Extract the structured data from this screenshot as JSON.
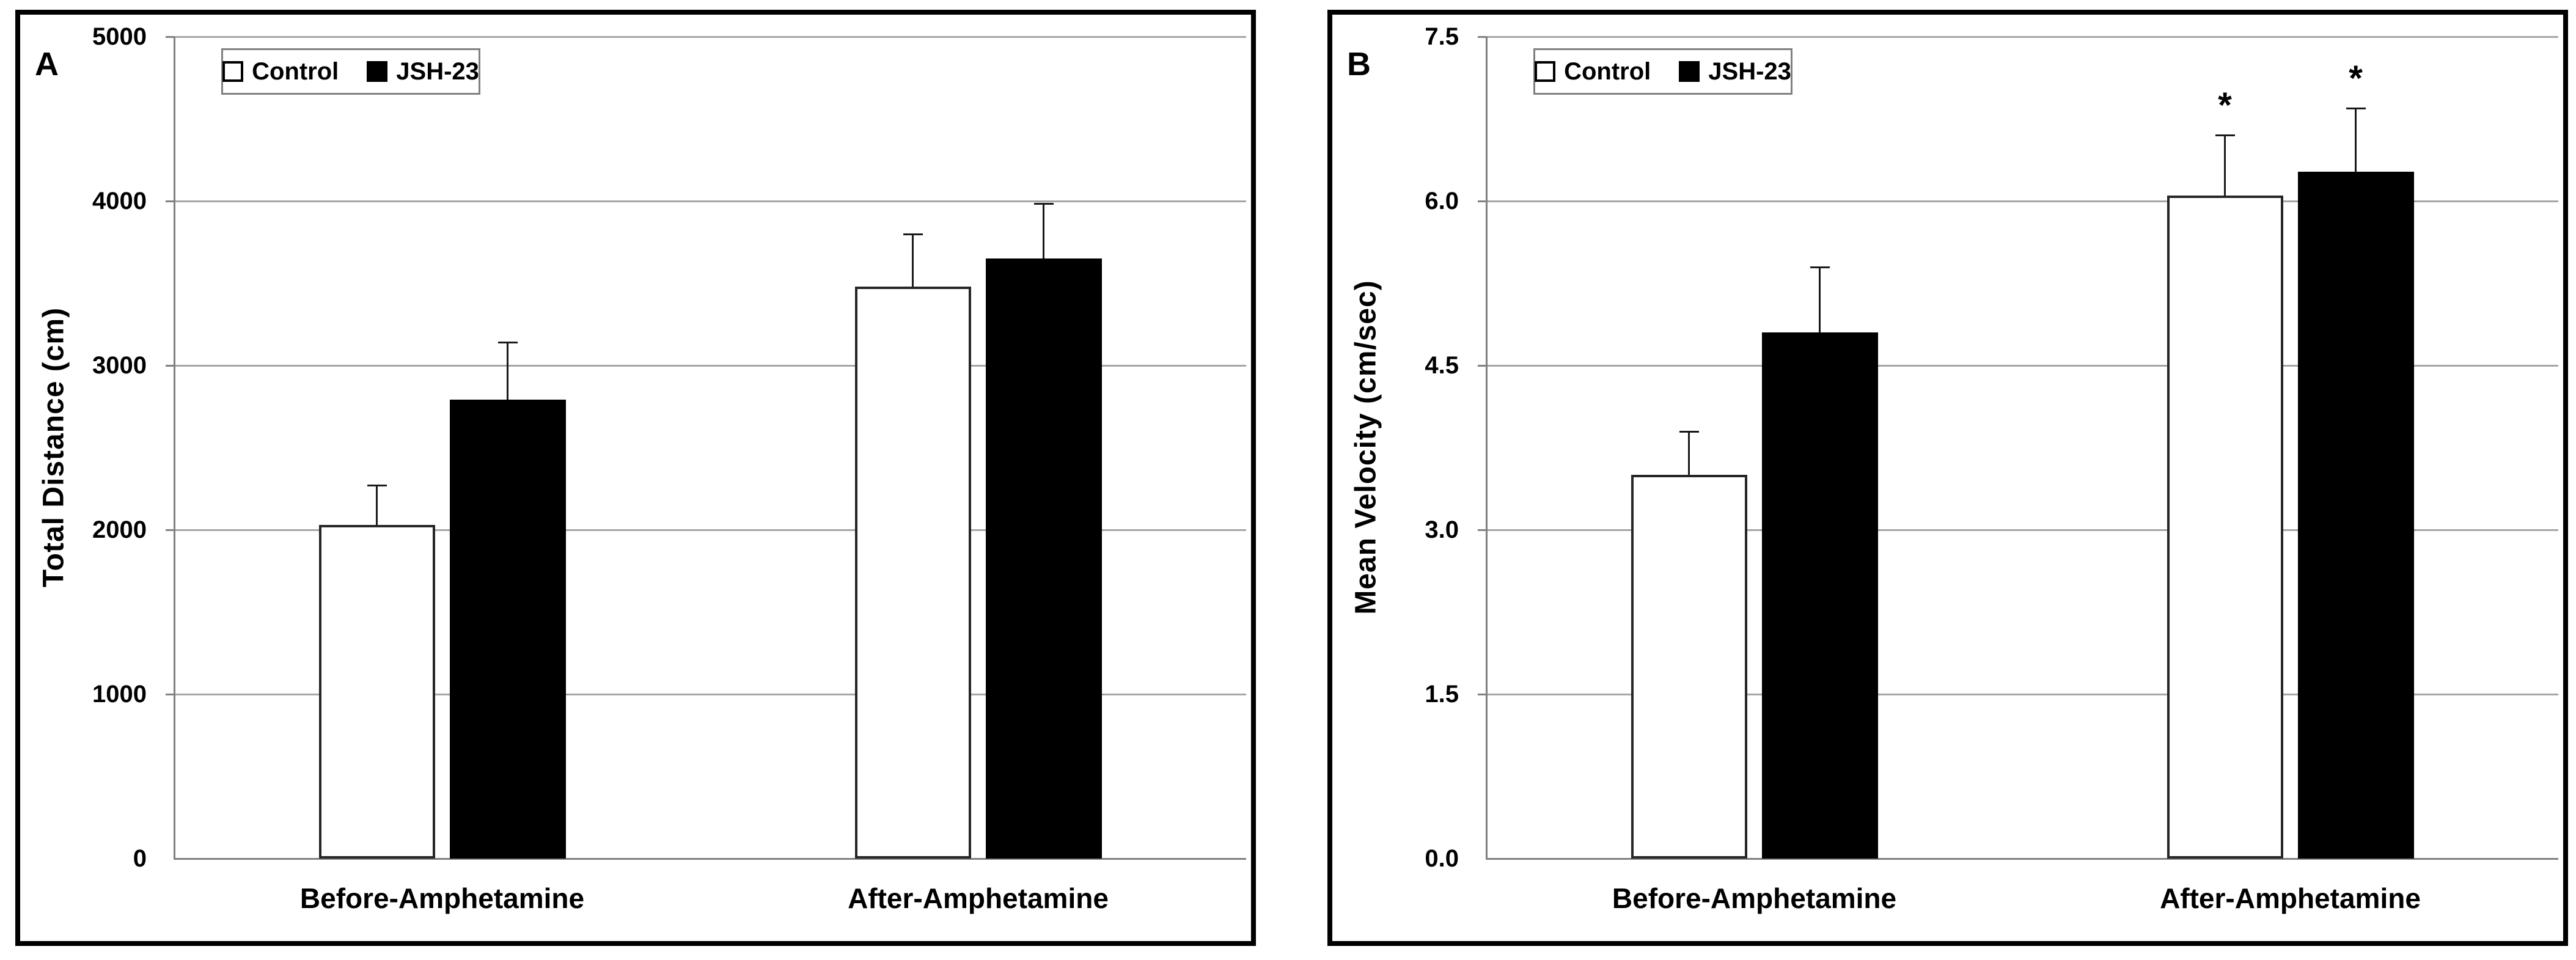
{
  "figure": {
    "background": "#ffffff",
    "panel_border_color": "#000000",
    "gridline_color": "#a6a6a6",
    "axis_color": "#808080",
    "bar_outline_color": "#262626"
  },
  "chart_data": [
    {
      "type": "bar",
      "panel_label": "A",
      "title": "",
      "xlabel": "",
      "ylabel": "Total Distance (cm)",
      "categories": [
        "Before-Amphetamine",
        "After-Amphetamine"
      ],
      "series": [
        {
          "name": "Control",
          "fill": "#ffffff",
          "values": [
            2030,
            3480
          ],
          "errors_plus": [
            240,
            320
          ],
          "sig": [
            "",
            ""
          ]
        },
        {
          "name": "JSH-23",
          "fill": "#000000",
          "values": [
            2790,
            3650
          ],
          "errors_plus": [
            350,
            335
          ],
          "sig": [
            "",
            ""
          ]
        }
      ],
      "ylim": [
        0,
        5000
      ],
      "ytick_labels": [
        "0",
        "1000",
        "2000",
        "3000",
        "4000",
        "5000"
      ],
      "grid": "horizontal",
      "legend_position": "top-left-inside",
      "legend_labels": [
        "Control",
        "JSH-23"
      ]
    },
    {
      "type": "bar",
      "panel_label": "B",
      "title": "",
      "xlabel": "",
      "ylabel": "Mean Velocity (cm/sec)",
      "categories": [
        "Before-Amphetamine",
        "After-Amphetamine"
      ],
      "series": [
        {
          "name": "Control",
          "fill": "#ffffff",
          "values": [
            3.5,
            6.05
          ],
          "errors_plus": [
            0.4,
            0.55
          ],
          "sig": [
            "",
            "*"
          ]
        },
        {
          "name": "JSH-23",
          "fill": "#000000",
          "values": [
            4.8,
            6.27
          ],
          "errors_plus": [
            0.6,
            0.58
          ],
          "sig": [
            "",
            "*"
          ]
        }
      ],
      "ylim": [
        0,
        7.5
      ],
      "ytick_labels": [
        "0.0",
        "1.5",
        "3.0",
        "4.5",
        "6.0",
        "7.5"
      ],
      "grid": "horizontal",
      "legend_position": "top-left-inside",
      "legend_labels": [
        "Control",
        "JSH-23"
      ]
    }
  ]
}
